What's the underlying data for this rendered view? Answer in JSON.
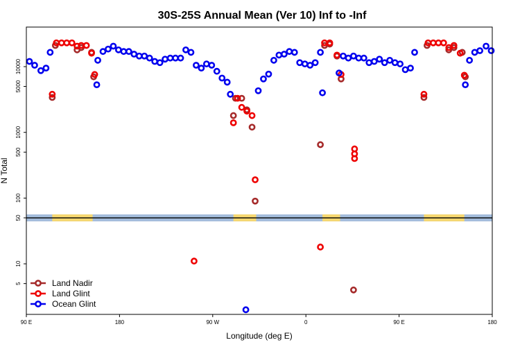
{
  "chart_data": {
    "type": "scatter",
    "title": "30S-25S Annual Mean (Ver 10)   Inf to -Inf",
    "xlabel": "Longitude (deg E)",
    "ylabel": "N Total",
    "x_ticks": [
      {
        "value": 0,
        "label": "90 E"
      },
      {
        "value": 90,
        "label": "180"
      },
      {
        "value": 180,
        "label": "90 W"
      },
      {
        "value": 270,
        "label": "0"
      },
      {
        "value": 360,
        "label": "90 E"
      },
      {
        "value": 450,
        "label": "180"
      }
    ],
    "xlim": [
      0,
      450
    ],
    "y_ticks": [
      {
        "value": 5,
        "label": "5"
      },
      {
        "value": 10,
        "label": "10"
      },
      {
        "value": 50,
        "label": "50"
      },
      {
        "value": 100,
        "label": "100"
      },
      {
        "value": 500,
        "label": "500"
      },
      {
        "value": 1000,
        "label": "1000"
      },
      {
        "value": 5000,
        "label": "5000"
      },
      {
        "value": 10000,
        "label": "10000"
      }
    ],
    "ylim": [
      1.7,
      40000
    ],
    "y_scale": "log",
    "grid": false,
    "legend_position": "bottom-left",
    "land_band": {
      "y": 50,
      "ocean_color": "#a3bcdc",
      "land_color": "#f6d870",
      "land_ranges": [
        [
          25,
          64
        ],
        [
          200,
          222
        ],
        [
          286,
          303
        ],
        [
          384,
          423
        ]
      ]
    },
    "series": [
      {
        "name": "Land Nadir",
        "color": "#a52a2a",
        "points": [
          [
            25,
            3400
          ],
          [
            28,
            21000
          ],
          [
            49,
            18000
          ],
          [
            53,
            19500
          ],
          [
            63,
            16500
          ],
          [
            65,
            7000
          ],
          [
            200,
            1800
          ],
          [
            202,
            3300
          ],
          [
            208,
            3300
          ],
          [
            213,
            2200
          ],
          [
            218,
            1200
          ],
          [
            221,
            90
          ],
          [
            284,
            650
          ],
          [
            288,
            21000
          ],
          [
            293,
            22000
          ],
          [
            300,
            14500
          ],
          [
            304,
            6500
          ],
          [
            316,
            4
          ],
          [
            384,
            3400
          ],
          [
            387,
            21000
          ],
          [
            408,
            18000
          ],
          [
            413,
            19500
          ],
          [
            421,
            16500
          ],
          [
            424,
            7000
          ]
        ]
      },
      {
        "name": "Land Glint",
        "color": "#ee0000",
        "points": [
          [
            25,
            3800
          ],
          [
            29,
            23000
          ],
          [
            34,
            23000
          ],
          [
            39,
            23000
          ],
          [
            44,
            23000
          ],
          [
            49,
            20500
          ],
          [
            53,
            21000
          ],
          [
            58,
            21000
          ],
          [
            63,
            16000
          ],
          [
            66,
            7600
          ],
          [
            162,
            11
          ],
          [
            200,
            1400
          ],
          [
            204,
            3300
          ],
          [
            208,
            2400
          ],
          [
            213,
            2100
          ],
          [
            218,
            1800
          ],
          [
            221,
            190
          ],
          [
            284,
            18
          ],
          [
            288,
            23000
          ],
          [
            293,
            23000
          ],
          [
            300,
            15000
          ],
          [
            304,
            7600
          ],
          [
            317,
            400
          ],
          [
            317,
            470
          ],
          [
            317,
            560
          ],
          [
            384,
            3800
          ],
          [
            388,
            23000
          ],
          [
            393,
            23000
          ],
          [
            398,
            23000
          ],
          [
            403,
            23000
          ],
          [
            408,
            19500
          ],
          [
            413,
            21000
          ],
          [
            419,
            16000
          ],
          [
            423,
            7400
          ]
        ]
      },
      {
        "name": "Ocean Glint",
        "color": "#0000ee",
        "points": [
          [
            3,
            12000
          ],
          [
            8,
            10500
          ],
          [
            14,
            8700
          ],
          [
            19,
            9500
          ],
          [
            23,
            16500
          ],
          [
            68,
            5300
          ],
          [
            69,
            12500
          ],
          [
            74,
            17000
          ],
          [
            79,
            18500
          ],
          [
            84,
            20500
          ],
          [
            89,
            18000
          ],
          [
            94,
            17000
          ],
          [
            99,
            17000
          ],
          [
            104,
            15500
          ],
          [
            109,
            14500
          ],
          [
            114,
            14500
          ],
          [
            119,
            13500
          ],
          [
            124,
            12000
          ],
          [
            129,
            11500
          ],
          [
            134,
            13000
          ],
          [
            139,
            13500
          ],
          [
            144,
            13500
          ],
          [
            149,
            13500
          ],
          [
            154,
            18000
          ],
          [
            159,
            16500
          ],
          [
            164,
            10500
          ],
          [
            169,
            9500
          ],
          [
            174,
            11000
          ],
          [
            179,
            10500
          ],
          [
            184,
            8500
          ],
          [
            189,
            6700
          ],
          [
            194,
            5800
          ],
          [
            197,
            3800
          ],
          [
            212,
            2
          ],
          [
            224,
            4300
          ],
          [
            229,
            6500
          ],
          [
            234,
            7700
          ],
          [
            239,
            12500
          ],
          [
            244,
            15000
          ],
          [
            249,
            15500
          ],
          [
            254,
            17000
          ],
          [
            259,
            16500
          ],
          [
            264,
            11500
          ],
          [
            269,
            11000
          ],
          [
            274,
            10500
          ],
          [
            279,
            11500
          ],
          [
            284,
            16500
          ],
          [
            286,
            4000
          ],
          [
            302,
            8000
          ],
          [
            306,
            14500
          ],
          [
            311,
            13500
          ],
          [
            316,
            14500
          ],
          [
            321,
            13500
          ],
          [
            326,
            13500
          ],
          [
            331,
            11500
          ],
          [
            336,
            12000
          ],
          [
            341,
            13000
          ],
          [
            346,
            11500
          ],
          [
            351,
            12500
          ],
          [
            356,
            11500
          ],
          [
            361,
            11000
          ],
          [
            366,
            9000
          ],
          [
            371,
            9500
          ],
          [
            375,
            16500
          ],
          [
            424,
            5300
          ],
          [
            428,
            12500
          ],
          [
            433,
            16500
          ],
          [
            438,
            17500
          ],
          [
            444,
            20500
          ],
          [
            449,
            17500
          ]
        ]
      }
    ]
  }
}
